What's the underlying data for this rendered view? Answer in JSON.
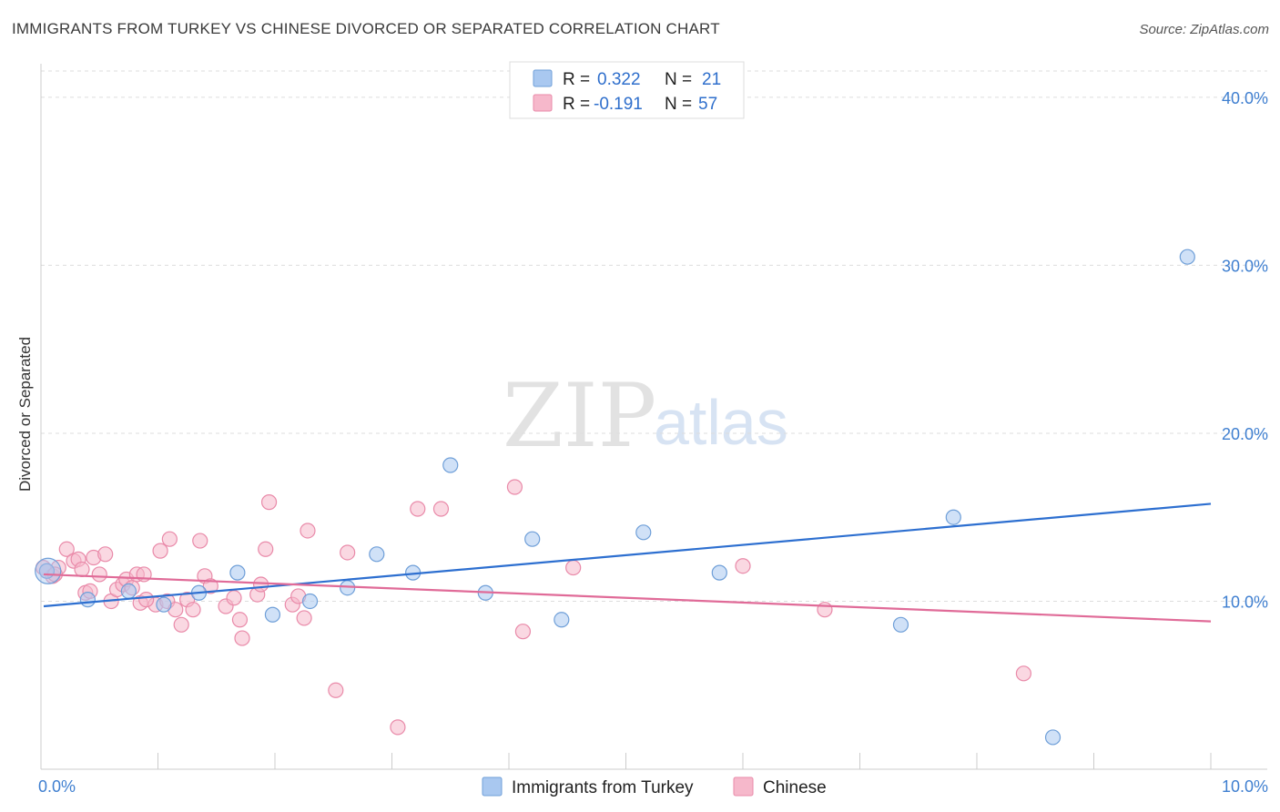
{
  "header": {
    "title": "IMMIGRANTS FROM TURKEY VS CHINESE DIVORCED OR SEPARATED CORRELATION CHART",
    "source": "Source: ZipAtlas.com"
  },
  "watermark": {
    "zip": "ZIP",
    "atlas": "atlas"
  },
  "legend": {
    "r_label": "R =",
    "n_label": "N =",
    "rows": [
      {
        "r": "0.322",
        "n": "21"
      },
      {
        "r": "-0.191",
        "n": "57"
      }
    ]
  },
  "colors": {
    "turkey_fill": "#a9c8f0",
    "turkey_stroke": "#6f9fd8",
    "turkey_line": "#2d6fd0",
    "chinese_fill": "#f6b8cb",
    "chinese_stroke": "#e98aa9",
    "chinese_line": "#e06b98",
    "tick_text": "#3f7fd0",
    "grid": "#dddddd"
  },
  "chart_data": {
    "type": "scatter",
    "title": "IMMIGRANTS FROM TURKEY VS CHINESE DIVORCED OR SEPARATED CORRELATION CHART",
    "xlabel": "",
    "ylabel": "Divorced or Separated",
    "xlim": [
      0,
      10
    ],
    "ylim": [
      0,
      42
    ],
    "x_tick_labels": [
      "0.0%",
      "10.0%"
    ],
    "y_ticks": [
      10,
      20,
      30,
      40
    ],
    "y_tick_labels": [
      "10.0%",
      "20.0%",
      "30.0%",
      "40.0%"
    ],
    "grid": true,
    "legend_position": "top-center",
    "series": [
      {
        "name": "Immigrants from Turkey",
        "color": "#a9c8f0",
        "r": 0.322,
        "n": 21,
        "trend": {
          "x": [
            0,
            10
          ],
          "y": [
            9.7,
            15.8
          ]
        },
        "points": [
          {
            "x": 0.05,
            "y": 11.8
          },
          {
            "x": 0.4,
            "y": 10.1
          },
          {
            "x": 0.75,
            "y": 10.6
          },
          {
            "x": 1.05,
            "y": 9.8
          },
          {
            "x": 1.35,
            "y": 10.5
          },
          {
            "x": 1.68,
            "y": 11.7
          },
          {
            "x": 1.98,
            "y": 9.2
          },
          {
            "x": 2.3,
            "y": 10.0
          },
          {
            "x": 2.62,
            "y": 10.8
          },
          {
            "x": 2.87,
            "y": 12.8
          },
          {
            "x": 3.18,
            "y": 11.7
          },
          {
            "x": 3.5,
            "y": 18.1
          },
          {
            "x": 3.8,
            "y": 10.5
          },
          {
            "x": 4.2,
            "y": 13.7
          },
          {
            "x": 4.45,
            "y": 8.9
          },
          {
            "x": 5.15,
            "y": 14.1
          },
          {
            "x": 5.8,
            "y": 11.7
          },
          {
            "x": 7.35,
            "y": 8.6
          },
          {
            "x": 7.8,
            "y": 15.0
          },
          {
            "x": 8.65,
            "y": 1.9
          },
          {
            "x": 9.8,
            "y": 30.5
          }
        ]
      },
      {
        "name": "Chinese",
        "color": "#f6b8cb",
        "r": -0.191,
        "n": 57,
        "trend": {
          "x": [
            0,
            10
          ],
          "y": [
            11.6,
            8.8
          ]
        },
        "points": [
          {
            "x": 0.02,
            "y": 12.0
          },
          {
            "x": 0.1,
            "y": 11.5
          },
          {
            "x": 0.15,
            "y": 12.0
          },
          {
            "x": 0.22,
            "y": 13.1
          },
          {
            "x": 0.28,
            "y": 12.4
          },
          {
            "x": 0.32,
            "y": 12.5
          },
          {
            "x": 0.35,
            "y": 11.9
          },
          {
            "x": 0.38,
            "y": 10.5
          },
          {
            "x": 0.42,
            "y": 10.6
          },
          {
            "x": 0.45,
            "y": 12.6
          },
          {
            "x": 0.5,
            "y": 11.6
          },
          {
            "x": 0.55,
            "y": 12.8
          },
          {
            "x": 0.6,
            "y": 10.0
          },
          {
            "x": 0.65,
            "y": 10.7
          },
          {
            "x": 0.7,
            "y": 11.0
          },
          {
            "x": 0.73,
            "y": 11.3
          },
          {
            "x": 0.78,
            "y": 10.8
          },
          {
            "x": 0.82,
            "y": 11.6
          },
          {
            "x": 0.85,
            "y": 9.9
          },
          {
            "x": 0.88,
            "y": 11.6
          },
          {
            "x": 0.98,
            "y": 9.8
          },
          {
            "x": 1.02,
            "y": 13.0
          },
          {
            "x": 1.08,
            "y": 10.0
          },
          {
            "x": 1.1,
            "y": 13.7
          },
          {
            "x": 1.15,
            "y": 9.5
          },
          {
            "x": 1.2,
            "y": 8.6
          },
          {
            "x": 1.25,
            "y": 10.1
          },
          {
            "x": 1.3,
            "y": 9.5
          },
          {
            "x": 1.36,
            "y": 13.6
          },
          {
            "x": 1.4,
            "y": 11.5
          },
          {
            "x": 1.45,
            "y": 10.9
          },
          {
            "x": 1.58,
            "y": 9.7
          },
          {
            "x": 1.65,
            "y": 10.2
          },
          {
            "x": 1.7,
            "y": 8.9
          },
          {
            "x": 1.72,
            "y": 7.8
          },
          {
            "x": 1.85,
            "y": 10.4
          },
          {
            "x": 1.88,
            "y": 11.0
          },
          {
            "x": 1.92,
            "y": 13.1
          },
          {
            "x": 1.95,
            "y": 15.9
          },
          {
            "x": 2.15,
            "y": 9.8
          },
          {
            "x": 2.2,
            "y": 10.3
          },
          {
            "x": 2.25,
            "y": 9.0
          },
          {
            "x": 2.28,
            "y": 14.2
          },
          {
            "x": 2.52,
            "y": 4.7
          },
          {
            "x": 2.62,
            "y": 12.9
          },
          {
            "x": 3.05,
            "y": 2.5
          },
          {
            "x": 3.22,
            "y": 15.5
          },
          {
            "x": 3.42,
            "y": 15.5
          },
          {
            "x": 4.05,
            "y": 16.8
          },
          {
            "x": 4.12,
            "y": 8.2
          },
          {
            "x": 4.55,
            "y": 12.0
          },
          {
            "x": 6.0,
            "y": 12.1
          },
          {
            "x": 6.7,
            "y": 9.5
          },
          {
            "x": 8.4,
            "y": 5.7
          },
          {
            "x": 0.05,
            "y": 11.8
          },
          {
            "x": 0.12,
            "y": 11.6
          },
          {
            "x": 0.9,
            "y": 10.1
          }
        ]
      }
    ]
  }
}
